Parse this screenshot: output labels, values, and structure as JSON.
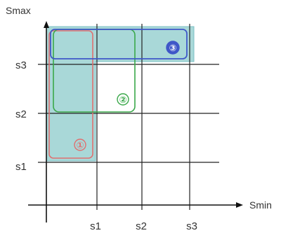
{
  "axes": {
    "y_label": "Smax",
    "x_label": "Smin",
    "y_ticks": [
      "s3",
      "s2",
      "s1"
    ],
    "x_ticks": [
      "s1",
      "s2",
      "s3"
    ]
  },
  "regions": [
    {
      "id": "region-1",
      "marker": "①",
      "color": "#e07070"
    },
    {
      "id": "region-2",
      "marker": "②",
      "color": "#3aa84a"
    },
    {
      "id": "region-3",
      "marker": "③",
      "color": "#3f57c8"
    }
  ],
  "colors": {
    "shaded_area": "#a9d8d8",
    "grid": "#222222",
    "axis": "#111111"
  }
}
